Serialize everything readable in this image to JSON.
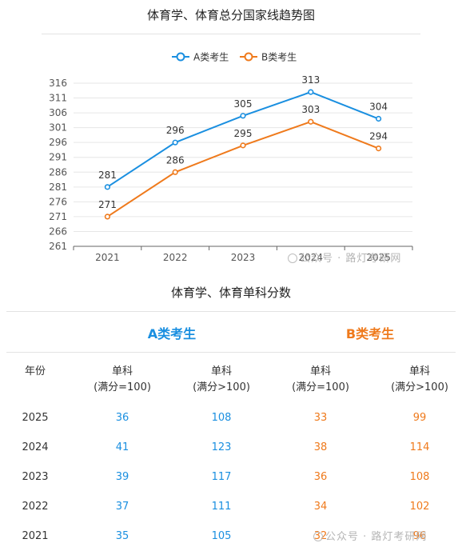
{
  "chart_data": {
    "type": "line",
    "title": "体育学、体育总分国家线趋势图",
    "categories": [
      "2021",
      "2022",
      "2023",
      "2024",
      "2025"
    ],
    "ylim": [
      261,
      316
    ],
    "yticks": [
      316,
      311,
      306,
      301,
      296,
      291,
      286,
      281,
      276,
      271,
      266,
      261
    ],
    "grid": true,
    "legend": "top-center",
    "series": [
      {
        "name": "A类考生",
        "color": "#1a8fe0",
        "values": [
          281,
          296,
          305,
          313,
          304
        ]
      },
      {
        "name": "B类考生",
        "color": "#ef7a1c",
        "values": [
          271,
          286,
          295,
          303,
          294
        ]
      }
    ]
  },
  "watermark": {
    "text": "公众号 · 路灯考研网"
  },
  "table": {
    "title": "体育学、体育单科分数",
    "group_a": "A类考生",
    "group_b": "B类考生",
    "color_a": "#1a8fe0",
    "color_b": "#ef7a1c",
    "header_year": "年份",
    "col_headers": [
      [
        "单科",
        "(满分=100)"
      ],
      [
        "单科",
        "(满分>100)"
      ],
      [
        "单科",
        "(满分=100)"
      ],
      [
        "单科",
        "(满分>100)"
      ]
    ],
    "rows": [
      {
        "year": "2025",
        "a100": "36",
        "a_over": "108",
        "b100": "33",
        "b_over": "99"
      },
      {
        "year": "2024",
        "a100": "41",
        "a_over": "123",
        "b100": "38",
        "b_over": "114"
      },
      {
        "year": "2023",
        "a100": "39",
        "a_over": "117",
        "b100": "36",
        "b_over": "108"
      },
      {
        "year": "2022",
        "a100": "37",
        "a_over": "111",
        "b100": "34",
        "b_over": "102"
      },
      {
        "year": "2021",
        "a100": "35",
        "a_over": "105",
        "b100": "32",
        "b_over": "96"
      }
    ]
  }
}
